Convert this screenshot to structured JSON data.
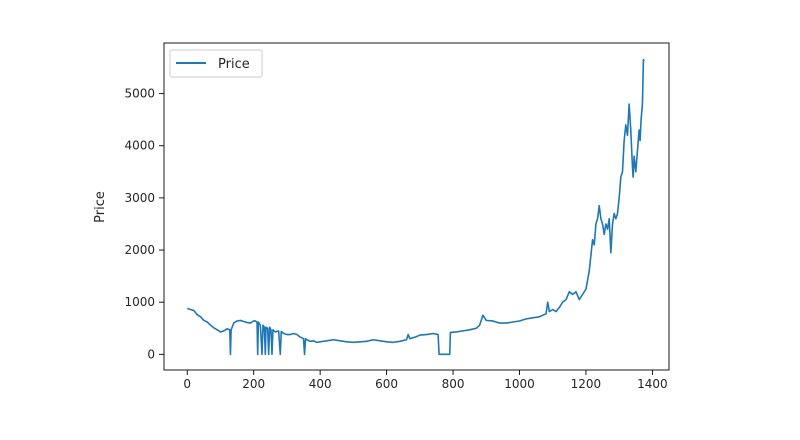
{
  "chart_data": {
    "type": "line",
    "title": "",
    "xlabel": "",
    "ylabel": "Price",
    "xlim": [
      -70,
      1450
    ],
    "ylim": [
      -300,
      5970
    ],
    "xticks": [
      0,
      200,
      400,
      600,
      800,
      1000,
      1200,
      1400
    ],
    "yticks": [
      0,
      1000,
      2000,
      3000,
      4000,
      5000
    ],
    "grid": false,
    "legend_position": "upper-left",
    "series": [
      {
        "name": "Price",
        "color": "#1f77b4",
        "points": [
          [
            0,
            880
          ],
          [
            10,
            860
          ],
          [
            20,
            840
          ],
          [
            30,
            760
          ],
          [
            40,
            720
          ],
          [
            50,
            650
          ],
          [
            60,
            620
          ],
          [
            70,
            560
          ],
          [
            80,
            510
          ],
          [
            90,
            470
          ],
          [
            100,
            430
          ],
          [
            110,
            450
          ],
          [
            120,
            490
          ],
          [
            128,
            470
          ],
          [
            130,
            0
          ],
          [
            132,
            470
          ],
          [
            135,
            520
          ],
          [
            140,
            600
          ],
          [
            150,
            640
          ],
          [
            160,
            650
          ],
          [
            170,
            630
          ],
          [
            180,
            610
          ],
          [
            190,
            600
          ],
          [
            200,
            640
          ],
          [
            205,
            640
          ],
          [
            210,
            620
          ],
          [
            212,
            0
          ],
          [
            214,
            620
          ],
          [
            220,
            560
          ],
          [
            225,
            0
          ],
          [
            228,
            560
          ],
          [
            232,
            520
          ],
          [
            235,
            0
          ],
          [
            237,
            520
          ],
          [
            242,
            500
          ],
          [
            245,
            0
          ],
          [
            248,
            520
          ],
          [
            252,
            470
          ],
          [
            255,
            0
          ],
          [
            258,
            470
          ],
          [
            265,
            430
          ],
          [
            275,
            450
          ],
          [
            280,
            0
          ],
          [
            283,
            440
          ],
          [
            290,
            400
          ],
          [
            300,
            380
          ],
          [
            310,
            380
          ],
          [
            320,
            400
          ],
          [
            330,
            380
          ],
          [
            340,
            330
          ],
          [
            350,
            300
          ],
          [
            353,
            0
          ],
          [
            356,
            300
          ],
          [
            360,
            280
          ],
          [
            370,
            250
          ],
          [
            380,
            260
          ],
          [
            390,
            230
          ],
          [
            400,
            240
          ],
          [
            420,
            260
          ],
          [
            440,
            280
          ],
          [
            460,
            260
          ],
          [
            480,
            240
          ],
          [
            500,
            230
          ],
          [
            520,
            240
          ],
          [
            540,
            250
          ],
          [
            560,
            280
          ],
          [
            580,
            260
          ],
          [
            600,
            240
          ],
          [
            620,
            230
          ],
          [
            640,
            250
          ],
          [
            660,
            280
          ],
          [
            665,
            380
          ],
          [
            670,
            300
          ],
          [
            690,
            340
          ],
          [
            700,
            370
          ],
          [
            720,
            380
          ],
          [
            740,
            400
          ],
          [
            755,
            380
          ],
          [
            758,
            0
          ],
          [
            790,
            0
          ],
          [
            792,
            420
          ],
          [
            810,
            430
          ],
          [
            830,
            450
          ],
          [
            850,
            470
          ],
          [
            870,
            500
          ],
          [
            880,
            560
          ],
          [
            890,
            750
          ],
          [
            900,
            650
          ],
          [
            920,
            640
          ],
          [
            940,
            600
          ],
          [
            960,
            600
          ],
          [
            980,
            620
          ],
          [
            1000,
            640
          ],
          [
            1020,
            680
          ],
          [
            1040,
            700
          ],
          [
            1060,
            720
          ],
          [
            1080,
            780
          ],
          [
            1085,
            1000
          ],
          [
            1090,
            820
          ],
          [
            1100,
            860
          ],
          [
            1110,
            820
          ],
          [
            1120,
            900
          ],
          [
            1130,
            1000
          ],
          [
            1140,
            1050
          ],
          [
            1150,
            1200
          ],
          [
            1160,
            1150
          ],
          [
            1170,
            1200
          ],
          [
            1180,
            1050
          ],
          [
            1190,
            1150
          ],
          [
            1200,
            1250
          ],
          [
            1210,
            1600
          ],
          [
            1215,
            1900
          ],
          [
            1220,
            2200
          ],
          [
            1225,
            2100
          ],
          [
            1230,
            2500
          ],
          [
            1235,
            2600
          ],
          [
            1240,
            2850
          ],
          [
            1245,
            2600
          ],
          [
            1250,
            2500
          ],
          [
            1255,
            2300
          ],
          [
            1260,
            2500
          ],
          [
            1265,
            2400
          ],
          [
            1270,
            2600
          ],
          [
            1275,
            1950
          ],
          [
            1280,
            2500
          ],
          [
            1285,
            2700
          ],
          [
            1290,
            2600
          ],
          [
            1295,
            2700
          ],
          [
            1300,
            3000
          ],
          [
            1305,
            3400
          ],
          [
            1310,
            3500
          ],
          [
            1315,
            4100
          ],
          [
            1320,
            4400
          ],
          [
            1325,
            4200
          ],
          [
            1330,
            4800
          ],
          [
            1335,
            4300
          ],
          [
            1340,
            3600
          ],
          [
            1342,
            3400
          ],
          [
            1345,
            3800
          ],
          [
            1350,
            3500
          ],
          [
            1355,
            3900
          ],
          [
            1360,
            4300
          ],
          [
            1363,
            4100
          ],
          [
            1366,
            4500
          ],
          [
            1370,
            4800
          ],
          [
            1373,
            5650
          ],
          [
            1376,
            5630
          ]
        ]
      }
    ]
  }
}
